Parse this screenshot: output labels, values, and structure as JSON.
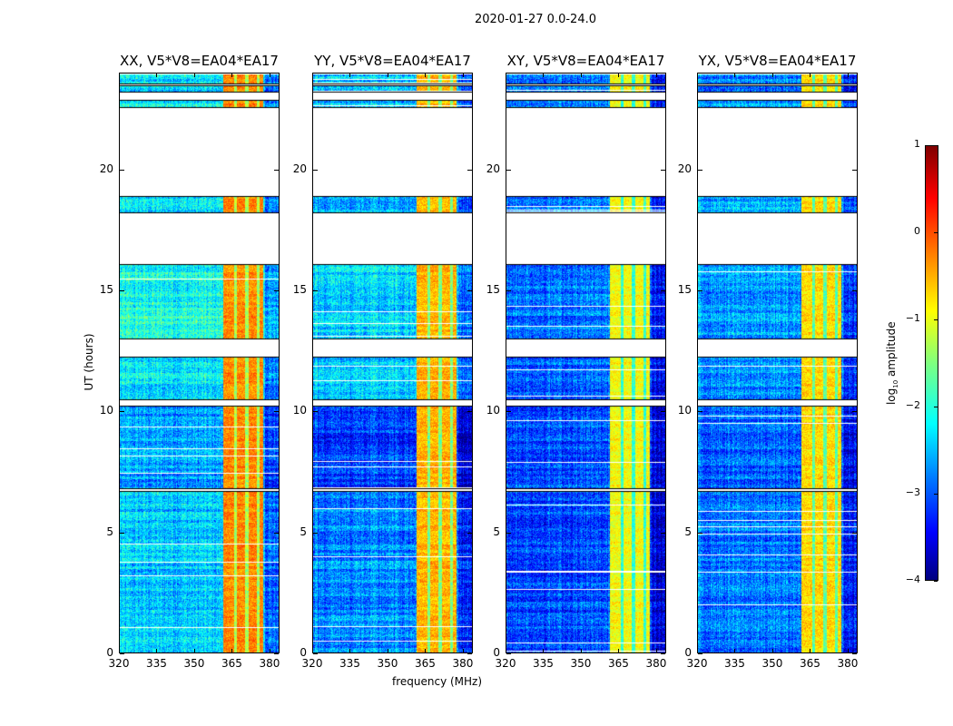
{
  "chart_data": {
    "type": "heatmap",
    "suptitle": "2020-01-27 0.0-24.0",
    "xlabel": "frequency (MHz)",
    "ylabel": "UT (hours)",
    "xlim": [
      320,
      384
    ],
    "ylim": [
      0,
      24
    ],
    "xticks": [
      "320",
      "335",
      "350",
      "365",
      "380"
    ],
    "xtick_values": [
      320,
      335,
      350,
      365,
      380
    ],
    "yticks": [
      "0",
      "5",
      "10",
      "15",
      "20"
    ],
    "ytick_values": [
      0,
      5,
      10,
      15,
      20
    ],
    "colorbar": {
      "label_main": "log",
      "label_sub": "10",
      "label_rest": " amplitude",
      "range": [
        -4,
        1
      ],
      "ticks": [
        "1",
        "0",
        "−1",
        "−2",
        "−3",
        "−4"
      ],
      "tick_values": [
        1,
        0,
        -1,
        -2,
        -3,
        -4
      ],
      "colormap": "jet"
    },
    "data_segments_hours": [
      [
        0,
        6.7
      ],
      [
        6.8,
        10.25
      ],
      [
        10.5,
        12.26
      ],
      [
        13.0,
        16.1
      ],
      [
        18.26,
        18.94
      ],
      [
        22.6,
        22.9
      ],
      [
        23.25,
        23.5
      ],
      [
        23.6,
        24
      ]
    ],
    "rfi_band_mhz": [
      361.5,
      377.5
    ],
    "rfi_dips_mhz": [
      366.5,
      371,
      375.5
    ],
    "panels": [
      {
        "title": "XX, V5*V8=EA04*EA17",
        "base_log_amp": [
          -2.4,
          -2.6,
          -2.2,
          -2.0,
          -2.3,
          -2.2,
          -2.3,
          -2.3
        ],
        "rfi_log_amp": -0.3
      },
      {
        "title": "YY, V5*V8=EA04*EA17",
        "base_log_amp": [
          -2.7,
          -3.1,
          -2.4,
          -2.3,
          -2.5,
          -2.4,
          -2.5,
          -2.4
        ],
        "rfi_log_amp": -0.5
      },
      {
        "title": "XY, V5*V8=EA04*EA17",
        "base_log_amp": [
          -3.0,
          -3.0,
          -2.9,
          -2.8,
          -2.8,
          -2.7,
          -2.9,
          -2.8
        ],
        "rfi_log_amp": -0.9
      },
      {
        "title": "YX, V5*V8=EA04*EA17",
        "base_log_amp": [
          -2.8,
          -2.9,
          -2.7,
          -2.6,
          -2.5,
          -2.6,
          -2.8,
          -2.7
        ],
        "rfi_log_amp": -0.7
      }
    ]
  }
}
